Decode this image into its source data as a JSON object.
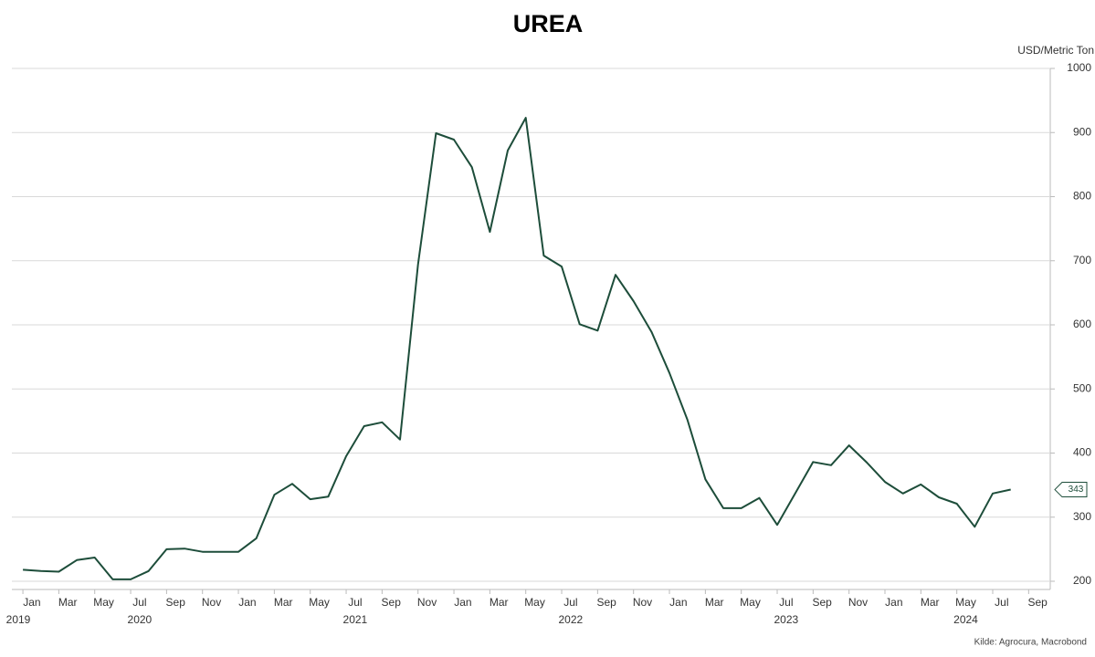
{
  "chart_data": {
    "type": "line",
    "title": "UREA",
    "y_axis_label": "USD/Metric Ton",
    "source": "Kilde: Agrocura, Macrobond",
    "x": [
      "2019-12",
      "2020-01",
      "2020-02",
      "2020-03",
      "2020-04",
      "2020-05",
      "2020-06",
      "2020-07",
      "2020-08",
      "2020-09",
      "2020-10",
      "2020-11",
      "2020-12",
      "2021-01",
      "2021-02",
      "2021-03",
      "2021-04",
      "2021-05",
      "2021-06",
      "2021-07",
      "2021-08",
      "2021-09",
      "2021-10",
      "2021-11",
      "2021-12",
      "2022-01",
      "2022-02",
      "2022-03",
      "2022-04",
      "2022-05",
      "2022-06",
      "2022-07",
      "2022-08",
      "2022-09",
      "2022-10",
      "2022-11",
      "2022-12",
      "2023-01",
      "2023-02",
      "2023-03",
      "2023-04",
      "2023-05",
      "2023-06",
      "2023-07",
      "2023-08",
      "2023-09",
      "2023-10",
      "2023-11",
      "2023-12",
      "2024-01",
      "2024-02",
      "2024-03",
      "2024-04",
      "2024-05",
      "2024-06",
      "2024-07"
    ],
    "series": [
      {
        "name": "Urea",
        "color": "#1d4d3a",
        "values": [
          218,
          216,
          215,
          233,
          237,
          203,
          203,
          216,
          250,
          251,
          246,
          246,
          246,
          267,
          335,
          352,
          328,
          332,
          395,
          442,
          448,
          421,
          694,
          899,
          889,
          846,
          745,
          872,
          923,
          708,
          691,
          601,
          591,
          678,
          637,
          589,
          525,
          452,
          359,
          314,
          314,
          330,
          288,
          337,
          386,
          381,
          412,
          385,
          355,
          337,
          351,
          331,
          321,
          285,
          337,
          343
        ]
      }
    ],
    "xlim": [
      "2019-12",
      "2024-10"
    ],
    "xticks": [
      {
        "value": "2020-01",
        "label": "Jan"
      },
      {
        "value": "2020-03",
        "label": "Mar"
      },
      {
        "value": "2020-05",
        "label": "May"
      },
      {
        "value": "2020-07",
        "label": "Jul"
      },
      {
        "value": "2020-09",
        "label": "Sep"
      },
      {
        "value": "2020-11",
        "label": "Nov"
      },
      {
        "value": "2021-01",
        "label": "Jan"
      },
      {
        "value": "2021-03",
        "label": "Mar"
      },
      {
        "value": "2021-05",
        "label": "May"
      },
      {
        "value": "2021-07",
        "label": "Jul"
      },
      {
        "value": "2021-09",
        "label": "Sep"
      },
      {
        "value": "2021-11",
        "label": "Nov"
      },
      {
        "value": "2022-01",
        "label": "Jan"
      },
      {
        "value": "2022-03",
        "label": "Mar"
      },
      {
        "value": "2022-05",
        "label": "May"
      },
      {
        "value": "2022-07",
        "label": "Jul"
      },
      {
        "value": "2022-09",
        "label": "Sep"
      },
      {
        "value": "2022-11",
        "label": "Nov"
      },
      {
        "value": "2023-01",
        "label": "Jan"
      },
      {
        "value": "2023-03",
        "label": "Mar"
      },
      {
        "value": "2023-05",
        "label": "May"
      },
      {
        "value": "2023-07",
        "label": "Jul"
      },
      {
        "value": "2023-09",
        "label": "Sep"
      },
      {
        "value": "2023-11",
        "label": "Nov"
      },
      {
        "value": "2024-01",
        "label": "Jan"
      },
      {
        "value": "2024-03",
        "label": "Mar"
      },
      {
        "value": "2024-05",
        "label": "May"
      },
      {
        "value": "2024-07",
        "label": "Jul"
      },
      {
        "value": "2024-09",
        "label": "Sep"
      }
    ],
    "year_ticks": [
      {
        "value": "2019-12",
        "label": "2019"
      },
      {
        "value": "2020-07",
        "label": "2020"
      },
      {
        "value": "2021-07",
        "label": "2021"
      },
      {
        "value": "2022-07",
        "label": "2022"
      },
      {
        "value": "2023-07",
        "label": "2023"
      },
      {
        "value": "2024-05",
        "label": "2024"
      }
    ],
    "ylim": [
      200,
      1000
    ],
    "yticks": [
      200,
      300,
      400,
      500,
      600,
      700,
      800,
      900,
      1000
    ],
    "grid": true
  }
}
